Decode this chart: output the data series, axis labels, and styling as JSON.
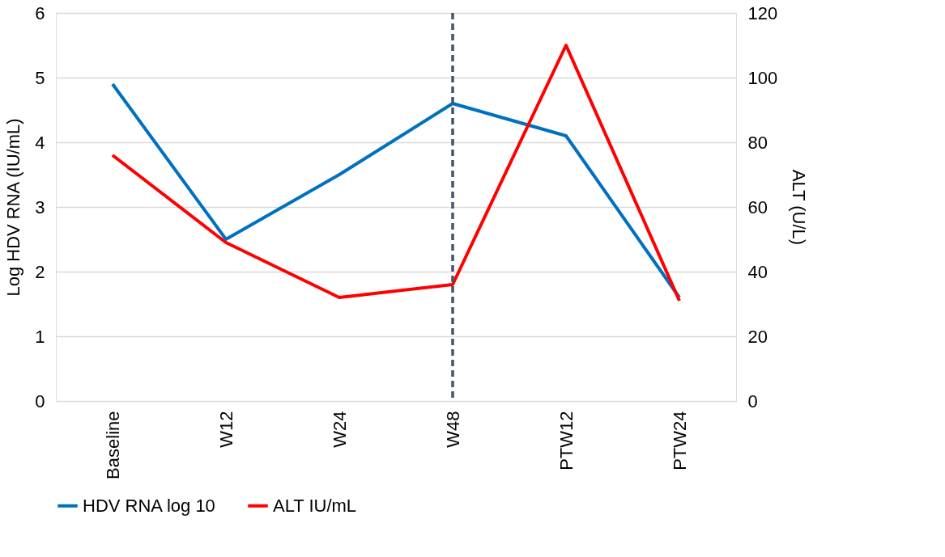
{
  "chart_data": {
    "type": "line",
    "categories": [
      "Baseline",
      "W12",
      "W24",
      "W48",
      "PTW12",
      "PTW24"
    ],
    "ylabel": "Log HDV RNA (IU/mL)",
    "y2label": "ALT (U/L)",
    "ylim": [
      0,
      6
    ],
    "yticks": [
      0,
      1,
      2,
      3,
      4,
      5,
      6
    ],
    "y2lim": [
      0,
      120
    ],
    "y2ticks": [
      0,
      20,
      40,
      60,
      80,
      100,
      120
    ],
    "series": [
      {
        "name": "HDV RNA log 10",
        "color": "#0070c0",
        "values": [
          4.9,
          2.5,
          3.5,
          4.6,
          4.1,
          1.6
        ]
      },
      {
        "name": "ALT IU/mL",
        "color": "#ff0000",
        "axis": "y2",
        "values": [
          76,
          49,
          32,
          36,
          110,
          31
        ]
      }
    ],
    "ref_lines": [
      {
        "axis": "x",
        "value": "W48",
        "color": "#44546a",
        "line_style": "dashed"
      }
    ],
    "grid": "y",
    "legend": "bottom",
    "marker": "none",
    "line_style": "solid"
  }
}
